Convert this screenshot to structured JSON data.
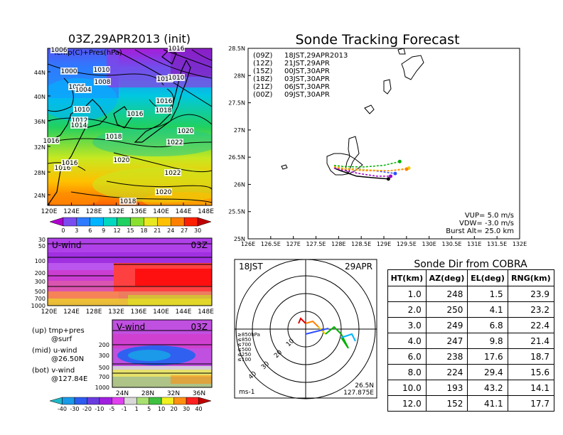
{
  "top_left": {
    "title": "03Z,29APR2013 (init)",
    "subtitle": "Temp(C)+Pres(hPa)",
    "lat_labels": [
      "44N",
      "40N",
      "36N",
      "32N",
      "28N",
      "24N"
    ],
    "lon_labels": [
      "120E",
      "124E",
      "128E",
      "132E",
      "136E",
      "140E",
      "144E",
      "148E"
    ],
    "pressure_labels": [
      "1000",
      "1008",
      "1006",
      "1004",
      "1010",
      "1014",
      "1010",
      "1016",
      "1018",
      "1012",
      "1014",
      "1016",
      "1016",
      "1018",
      "1020",
      "1022",
      "1020",
      "1022",
      "1020",
      "1018",
      "1016",
      "1016",
      "1010",
      "1006",
      "1016"
    ],
    "colorbar_labels": [
      "0",
      "3",
      "6",
      "9",
      "12",
      "15",
      "18",
      "21",
      "24",
      "27",
      "30"
    ],
    "colorbar_colors": [
      "#b000d0",
      "#7a4cf0",
      "#2e7bff",
      "#00b4ff",
      "#00d8c0",
      "#20d060",
      "#8ae030",
      "#e8e820",
      "#ffc000",
      "#ff8000",
      "#ff2000",
      "#c00000"
    ]
  },
  "uwind": {
    "label": "U-wind",
    "time": "03Z",
    "levels": [
      "30",
      "50",
      "100",
      "200",
      "300",
      "500",
      "700",
      "1000"
    ],
    "lon_labels": [
      "120E",
      "124E",
      "128E",
      "132E",
      "136E",
      "140E",
      "144E",
      "148E"
    ]
  },
  "vwind": {
    "label": "V-wind",
    "time": "03Z",
    "levels": [
      "200",
      "300",
      "500",
      "700",
      "1000"
    ],
    "lat_labels": [
      "24N",
      "28N",
      "32N",
      "36N"
    ],
    "colorbar_labels": [
      "-40",
      "-30",
      "-20",
      "-10",
      "-5",
      "-1",
      "1",
      "5",
      "10",
      "20",
      "30",
      "40"
    ],
    "colorbar_colors": [
      "#1fb8c8",
      "#1a9ae8",
      "#2c5cf0",
      "#6a3ce0",
      "#a020e0",
      "#e040f0",
      "#d8d8d8",
      "#a8e070",
      "#40c040",
      "#f0f020",
      "#ff9010",
      "#ff2020",
      "#c00000"
    ]
  },
  "notes": [
    {
      "a": "(up) tmp+pres",
      "b": "@surf"
    },
    {
      "a": "(mid) u-wind",
      "b": "@26.50N"
    },
    {
      "a": "(bot) v-wind",
      "b": "@127.84E"
    }
  ],
  "track_map": {
    "title": "Sonde Tracking Forecast",
    "lat_labels": [
      "28.5N",
      "28N",
      "27.5N",
      "27N",
      "26.5N",
      "26N",
      "25.5N",
      "25N"
    ],
    "lon_labels": [
      "126E",
      "126.5E",
      "127E",
      "127.5E",
      "128E",
      "128.5E",
      "129E",
      "129.5E",
      "130E",
      "130.5E",
      "131E",
      "131.5E",
      "132E"
    ],
    "legend": [
      {
        "code": "(09Z)",
        "text": "18JST,29APR2013",
        "color": "#000000"
      },
      {
        "code": "(12Z)",
        "text": "21JST,29APR",
        "color": "#a000c8"
      },
      {
        "code": "(15Z)",
        "text": "00JST,30APR",
        "color": "#3050ff"
      },
      {
        "code": "(18Z)",
        "text": "03JST,30APR",
        "color": "#00b000"
      },
      {
        "code": "(21Z)",
        "text": "06JST,30APR",
        "color": "#f0d000"
      },
      {
        "code": "(00Z)",
        "text": "09JST,30APR",
        "color": "#ff8000"
      }
    ],
    "params": [
      "VUP= 5.0 m/s",
      "VDW= -3.0 m/s",
      "Burst Alt= 25.0 km"
    ]
  },
  "hodograph": {
    "time_label": "18JST",
    "date_label": "29APR",
    "ring_labels": [
      "10",
      "20",
      "30",
      "40"
    ],
    "level_legend": [
      {
        "text": "≥850hPa",
        "color": "#e00000"
      },
      {
        "text": "≤850",
        "color": "#ff8000"
      },
      {
        "text": "≤700",
        "color": "#f0d000"
      },
      {
        "text": "≤500",
        "color": "#00b000"
      },
      {
        "text": "≤250",
        "color": "#00b4ff"
      },
      {
        "text": "≤100",
        "color": "#3050ff"
      }
    ],
    "units": "ms-1",
    "lat": "26.5N",
    "lon": "127.875E"
  },
  "sonde_table": {
    "title": "Sonde Dir from COBRA",
    "headers": [
      "HT(km)",
      "AZ(deg)",
      "EL(deg)",
      "RNG(km)"
    ],
    "rows": [
      [
        "1.0",
        "248",
        "1.5",
        "23.9"
      ],
      [
        "2.0",
        "250",
        "4.1",
        "23.2"
      ],
      [
        "3.0",
        "249",
        "6.8",
        "22.4"
      ],
      [
        "4.0",
        "247",
        "9.8",
        "21.4"
      ],
      [
        "6.0",
        "238",
        "17.6",
        "18.7"
      ],
      [
        "8.0",
        "224",
        "29.4",
        "15.6"
      ],
      [
        "10.0",
        "193",
        "43.2",
        "14.1"
      ],
      [
        "12.0",
        "152",
        "41.1",
        "17.7"
      ]
    ]
  },
  "chart_data": [
    {
      "type": "line",
      "title": "Sonde Tracking Forecast",
      "xlabel": "",
      "ylabel": "",
      "xlim": [
        126,
        132
      ],
      "ylim": [
        25,
        28.5
      ],
      "series": [
        {
          "name": "(09Z)",
          "color": "#000000",
          "x": [
            127.9,
            128.05,
            128.4,
            128.8,
            129.1
          ],
          "y": [
            26.3,
            26.25,
            26.15,
            26.12,
            26.1
          ]
        },
        {
          "name": "(12Z)",
          "color": "#a000c8",
          "x": [
            127.9,
            128.05,
            128.45,
            128.85,
            129.15
          ],
          "y": [
            26.3,
            26.27,
            26.2,
            26.15,
            26.15
          ]
        },
        {
          "name": "(15Z)",
          "color": "#3050ff",
          "x": [
            127.9,
            128.1,
            128.5,
            128.9,
            129.25
          ],
          "y": [
            26.32,
            26.3,
            26.28,
            26.24,
            26.2
          ]
        },
        {
          "name": "(18Z)",
          "color": "#00b000",
          "x": [
            127.9,
            128.1,
            128.55,
            129.0,
            129.35
          ],
          "y": [
            26.35,
            26.33,
            26.32,
            26.35,
            26.42
          ]
        },
        {
          "name": "(21Z)",
          "color": "#f0d000",
          "x": [
            127.9,
            128.1,
            128.6,
            129.1,
            129.55
          ],
          "y": [
            26.33,
            26.3,
            26.27,
            26.25,
            26.3
          ]
        },
        {
          "name": "(00Z)",
          "color": "#ff8000",
          "x": [
            127.9,
            128.1,
            128.6,
            129.1,
            129.5
          ],
          "y": [
            26.32,
            26.28,
            26.25,
            26.25,
            26.28
          ]
        }
      ]
    }
  ]
}
